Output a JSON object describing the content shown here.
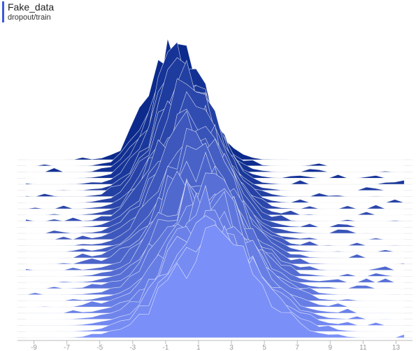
{
  "header": {
    "title": "Fake_data",
    "subtitle": "dropout/train"
  },
  "chart_data": {
    "type": "area",
    "style": "histogram-ridgeline",
    "xlim": [
      -10,
      14
    ],
    "xticks": [
      -9,
      -7,
      -5,
      -3,
      -1,
      1,
      3,
      5,
      7,
      9,
      11,
      13
    ],
    "steps": 30,
    "colors": {
      "back": "#0b2a8c",
      "front": "#7a8ff7",
      "outline": "#ffffff",
      "axis": "#bbbbbb",
      "tick_text": "#999999"
    },
    "mode": "offset",
    "series_shape": "each step is a noisy gaussian-like histogram over the x range; back steps are tall and narrow centered near 0, front steps are broader and centered near 2"
  }
}
